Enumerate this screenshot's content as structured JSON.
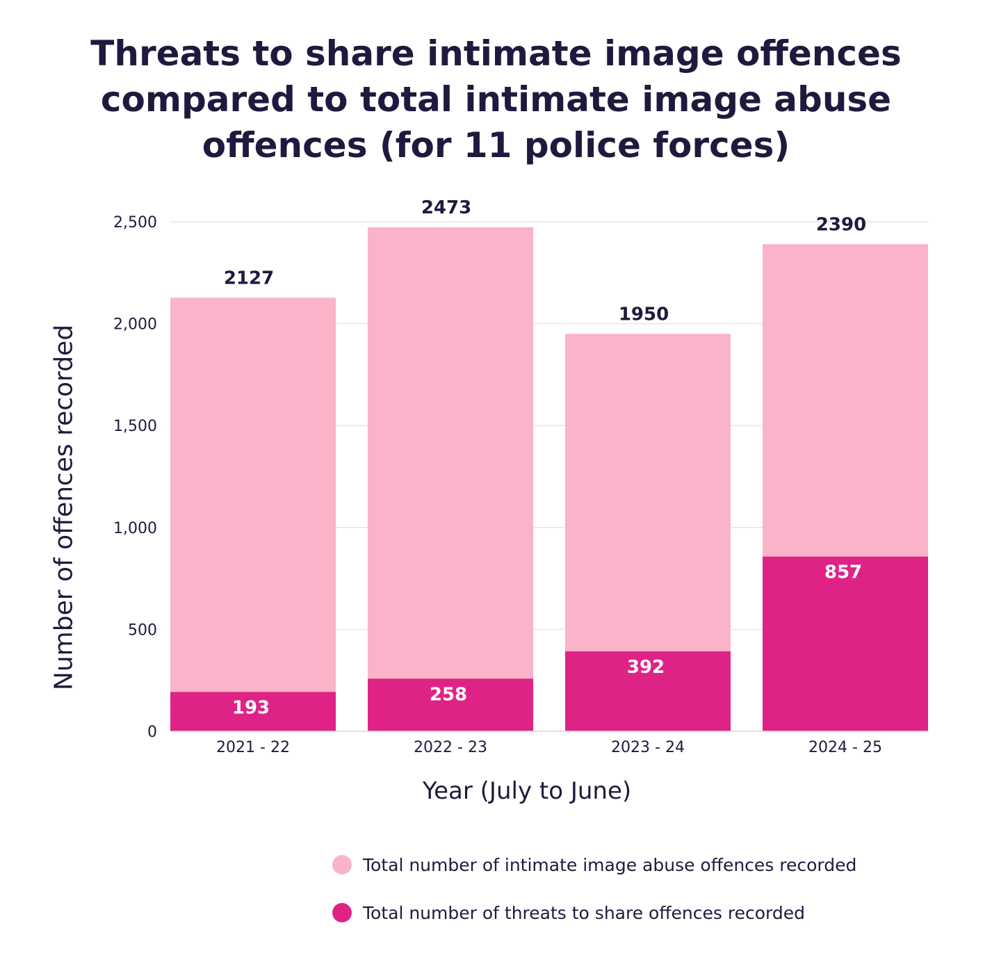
{
  "chart_data": {
    "type": "bar",
    "stacked": "overlay",
    "title_lines": [
      "Threats to share intimate image offences",
      "compared to total intimate image abuse",
      "offences (for 11 police forces)"
    ],
    "xlabel": "Year (July to June)",
    "ylabel": "Number of offences recorded",
    "categories": [
      "2021 - 22",
      "2022 - 23",
      "2023 - 24",
      "2024 - 25"
    ],
    "ylim": [
      0,
      2500
    ],
    "yticks": [
      0,
      500,
      1000,
      1500,
      2000,
      2500
    ],
    "ytick_labels": [
      "0",
      "500",
      "1,000",
      "1,500",
      "2,000",
      "2,500"
    ],
    "grid": true,
    "legend_position": "bottom-right",
    "series": [
      {
        "name": "Total number of intimate image abuse offences recorded",
        "color": "#fab3c8",
        "values": [
          2127,
          2473,
          1950,
          2390
        ],
        "labels": [
          "2127",
          "2473",
          "1950",
          "2390"
        ],
        "label_position": "above"
      },
      {
        "name": "Total number of threats to share offences recorded",
        "color": "#df2386",
        "values": [
          193,
          258,
          392,
          857
        ],
        "labels": [
          "193",
          "258",
          "392",
          "857"
        ],
        "label_position": "inside-top"
      }
    ]
  }
}
